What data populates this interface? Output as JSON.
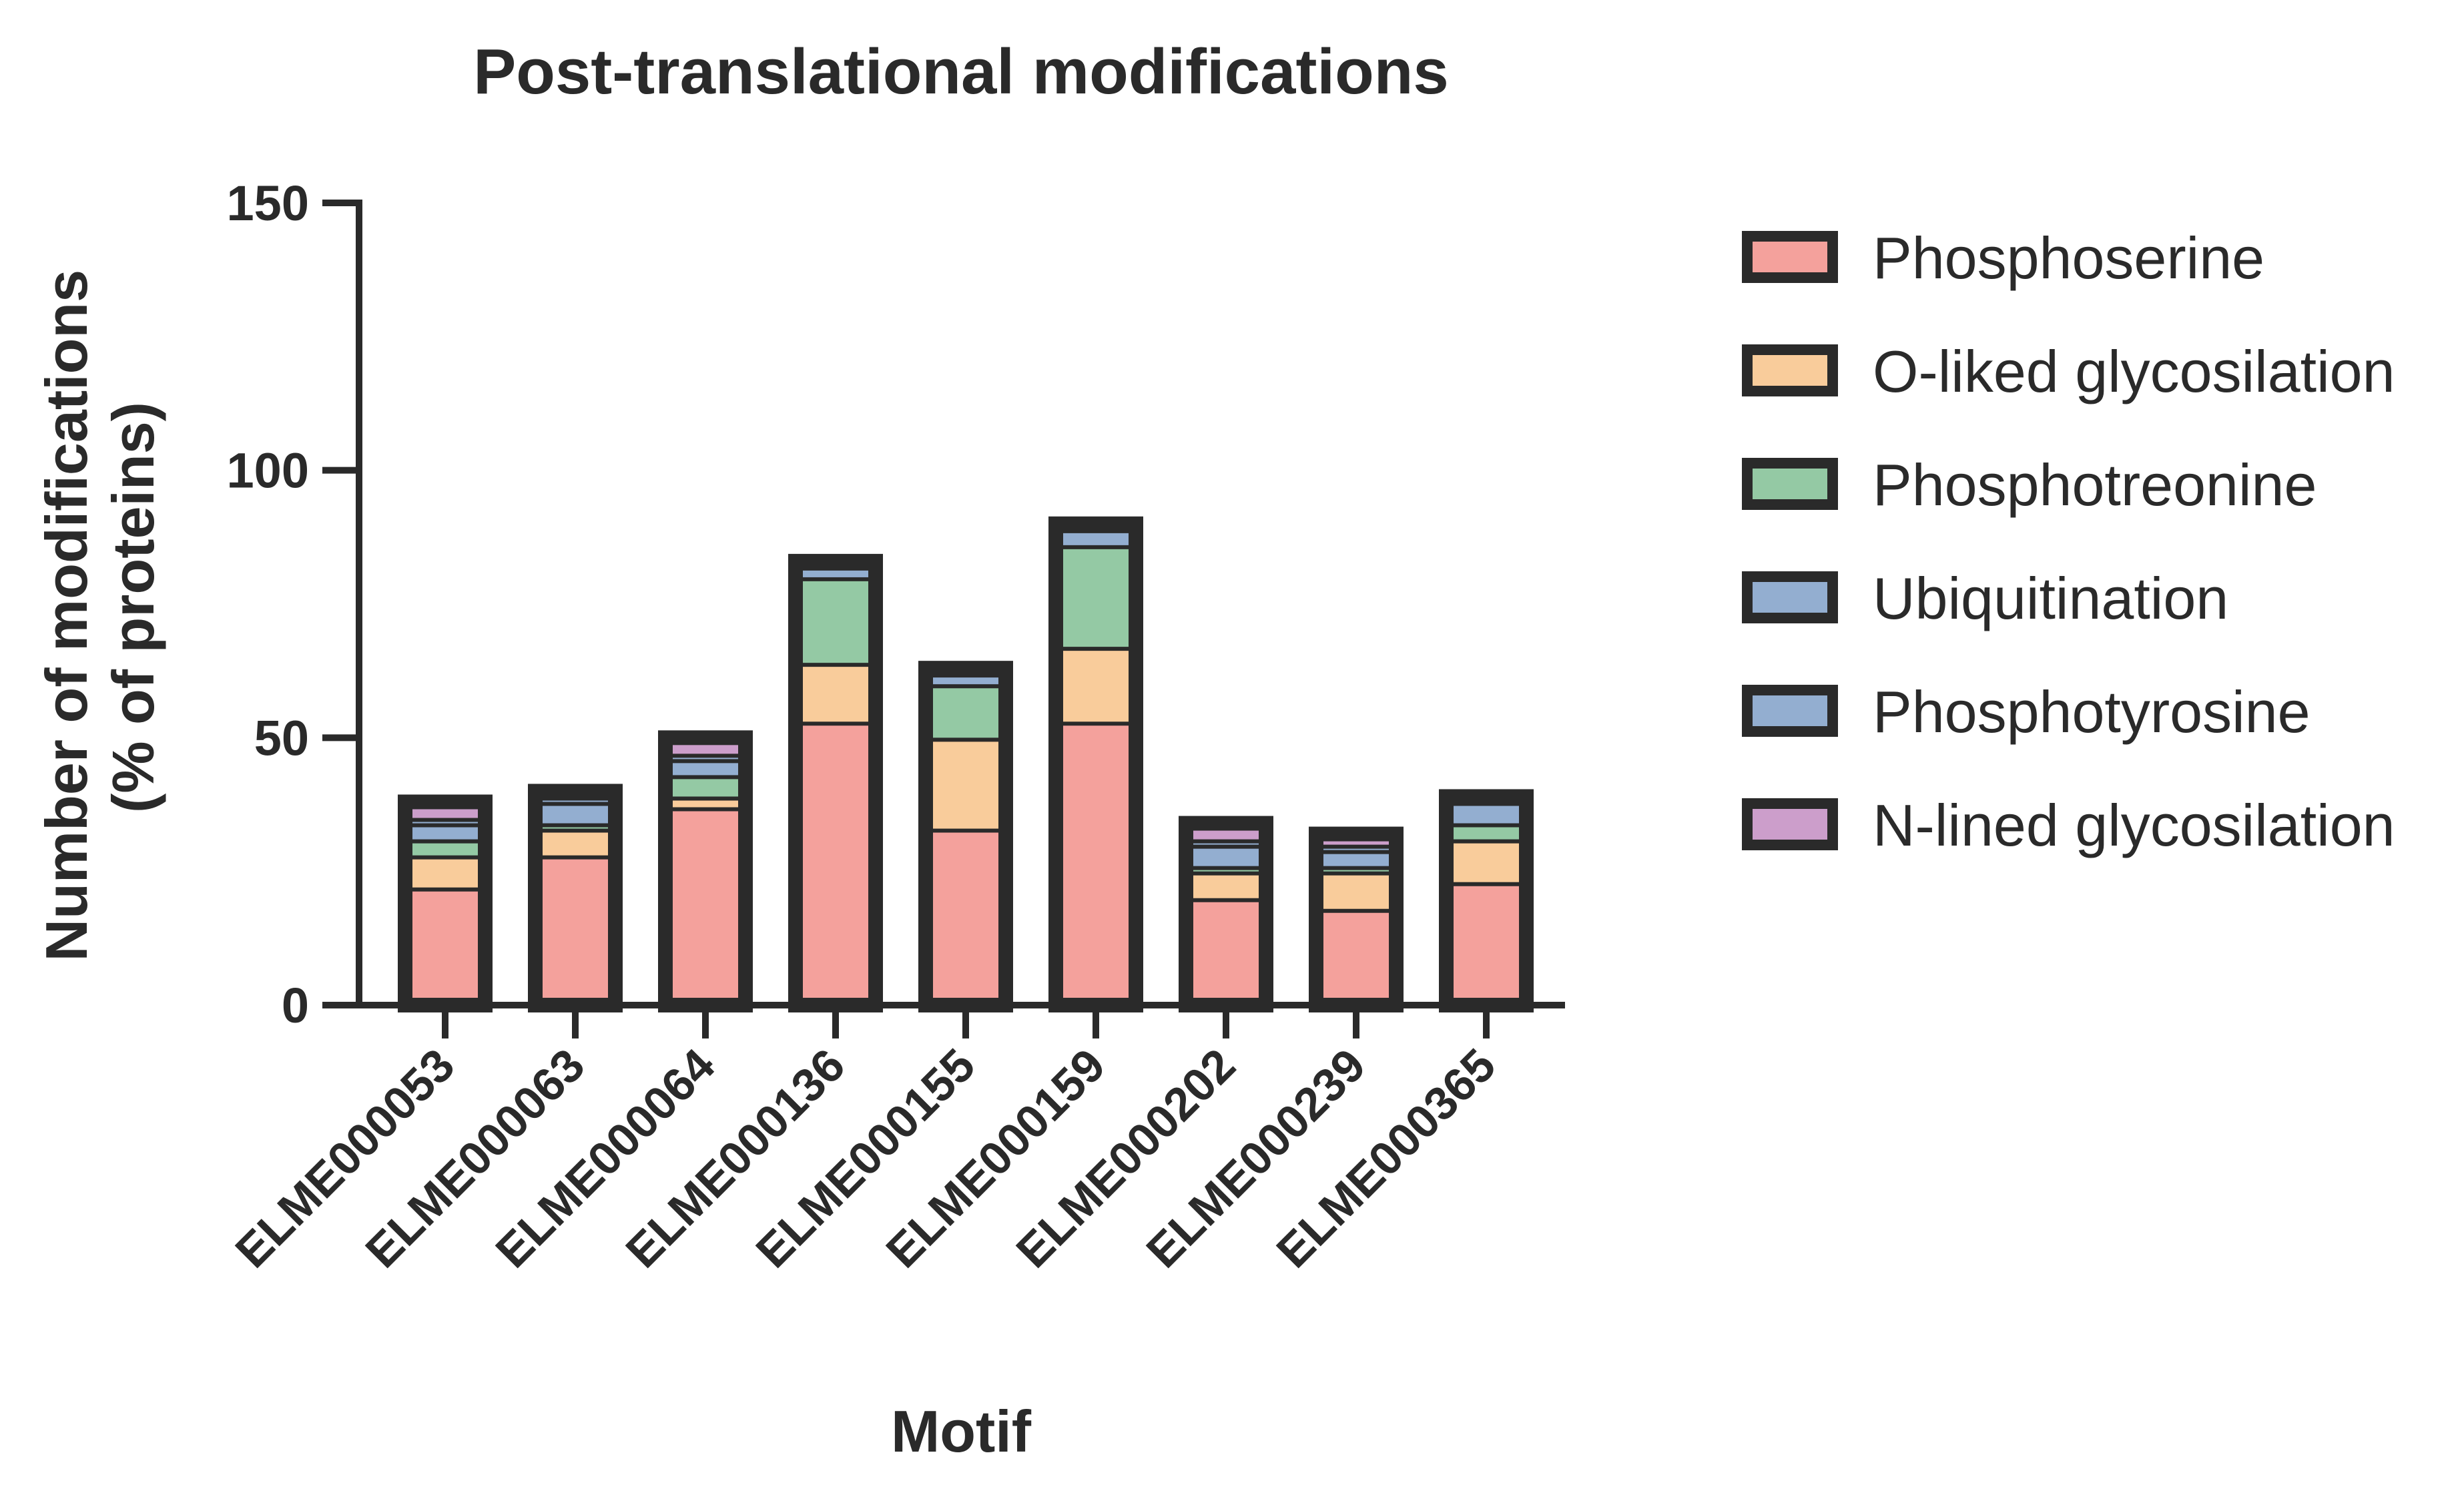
{
  "chart_data": {
    "type": "bar",
    "stacked": true,
    "title": "Post-translational modifications",
    "xlabel": "Motif",
    "ylabel_lines": [
      "Number of modifications",
      "(% of proteins)"
    ],
    "ylim": [
      0,
      150
    ],
    "yticks": [
      0,
      50,
      100,
      150
    ],
    "legend_position": "right",
    "categories": [
      "ELME000053",
      "ELME000063",
      "ELME000064",
      "ELME000136",
      "ELME000155",
      "ELME000159",
      "ELME000202",
      "ELME000239",
      "ELME000365"
    ],
    "series": [
      {
        "name": "Phosphoserine",
        "color": "#f4a19c",
        "values": [
          22,
          28,
          37,
          53,
          33,
          53,
          20,
          18,
          23
        ]
      },
      {
        "name": "O-liked glycosilation",
        "color": "#f9cc9b",
        "values": [
          6,
          5,
          2,
          11,
          17,
          14,
          5,
          7,
          8
        ]
      },
      {
        "name": "Phosphotreonine",
        "color": "#94c9a4",
        "values": [
          3,
          1,
          4,
          16,
          10,
          19,
          1,
          1,
          3
        ]
      },
      {
        "name": "Ubiquitination",
        "color": "#93aed0",
        "values": [
          3,
          4,
          3,
          2,
          2,
          3,
          4,
          3,
          4
        ]
      },
      {
        "name": "Phosphotyrosine",
        "color": "#93aed0",
        "values": [
          1,
          1,
          1,
          1,
          1,
          1,
          1,
          1,
          1
        ]
      },
      {
        "name": "N-lined glycosilation",
        "color": "#cc9ecb",
        "values": [
          3,
          1,
          3,
          0,
          0,
          0,
          3,
          2,
          0
        ]
      }
    ]
  }
}
